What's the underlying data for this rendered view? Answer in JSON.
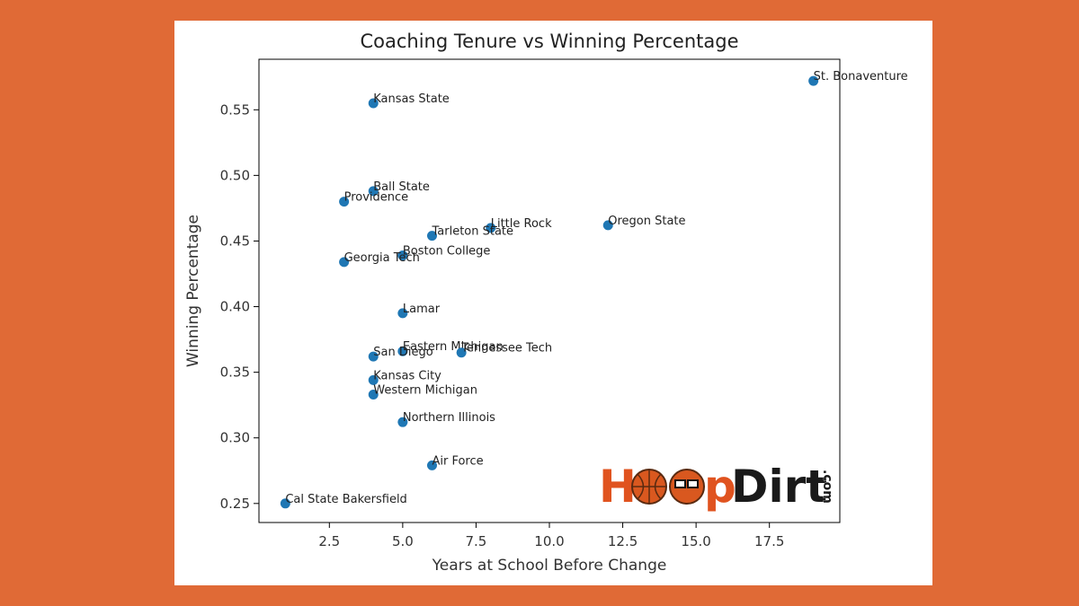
{
  "chart_data": {
    "type": "scatter",
    "title": "Coaching Tenure vs Winning Percentage",
    "xlabel": "Years at School Before Change",
    "ylabel": "Winning Percentage",
    "xlim": [
      0.1,
      19.9
    ],
    "ylim": [
      0.2355,
      0.5885
    ],
    "xticks": [
      2.5,
      5.0,
      7.5,
      10.0,
      12.5,
      15.0,
      17.5
    ],
    "xtick_labels": [
      "2.5",
      "5.0",
      "7.5",
      "10.0",
      "12.5",
      "15.0",
      "17.5"
    ],
    "yticks": [
      0.25,
      0.3,
      0.35,
      0.4,
      0.45,
      0.5,
      0.55
    ],
    "ytick_labels": [
      "0.25",
      "0.30",
      "0.35",
      "0.40",
      "0.45",
      "0.50",
      "0.55"
    ],
    "marker_color": "#1f77b4",
    "points": [
      {
        "label": "St. Bonaventure",
        "x": 19,
        "y": 0.572
      },
      {
        "label": "Kansas State",
        "x": 4,
        "y": 0.555
      },
      {
        "label": "Ball State",
        "x": 4,
        "y": 0.488
      },
      {
        "label": "Providence",
        "x": 3,
        "y": 0.48
      },
      {
        "label": "Little Rock",
        "x": 8,
        "y": 0.46
      },
      {
        "label": "Oregon State",
        "x": 12,
        "y": 0.462
      },
      {
        "label": "Tarleton State",
        "x": 6,
        "y": 0.454
      },
      {
        "label": "Boston College",
        "x": 5,
        "y": 0.439
      },
      {
        "label": "Georgia Tech",
        "x": 3,
        "y": 0.434
      },
      {
        "label": "Lamar",
        "x": 5,
        "y": 0.395
      },
      {
        "label": "Eastern Michigan",
        "x": 5,
        "y": 0.366
      },
      {
        "label": "Tennessee Tech",
        "x": 7,
        "y": 0.365
      },
      {
        "label": "San Diego",
        "x": 4,
        "y": 0.362
      },
      {
        "label": "Kansas City",
        "x": 4,
        "y": 0.344
      },
      {
        "label": "Western Michigan",
        "x": 4,
        "y": 0.333
      },
      {
        "label": "Northern Illinois",
        "x": 5,
        "y": 0.312
      },
      {
        "label": "Air Force",
        "x": 6,
        "y": 0.279
      },
      {
        "label": "Cal State Bakersfield",
        "x": 1,
        "y": 0.25
      }
    ]
  },
  "watermark": {
    "text_hoop": "H",
    "text_p": "p",
    "text_dirt": "Dirt",
    "text_com": ".com",
    "color_orange": "#e0531f",
    "color_dark": "#1a1a1a"
  },
  "colors": {
    "page_background": "#e06a36",
    "card_background": "#ffffff"
  }
}
